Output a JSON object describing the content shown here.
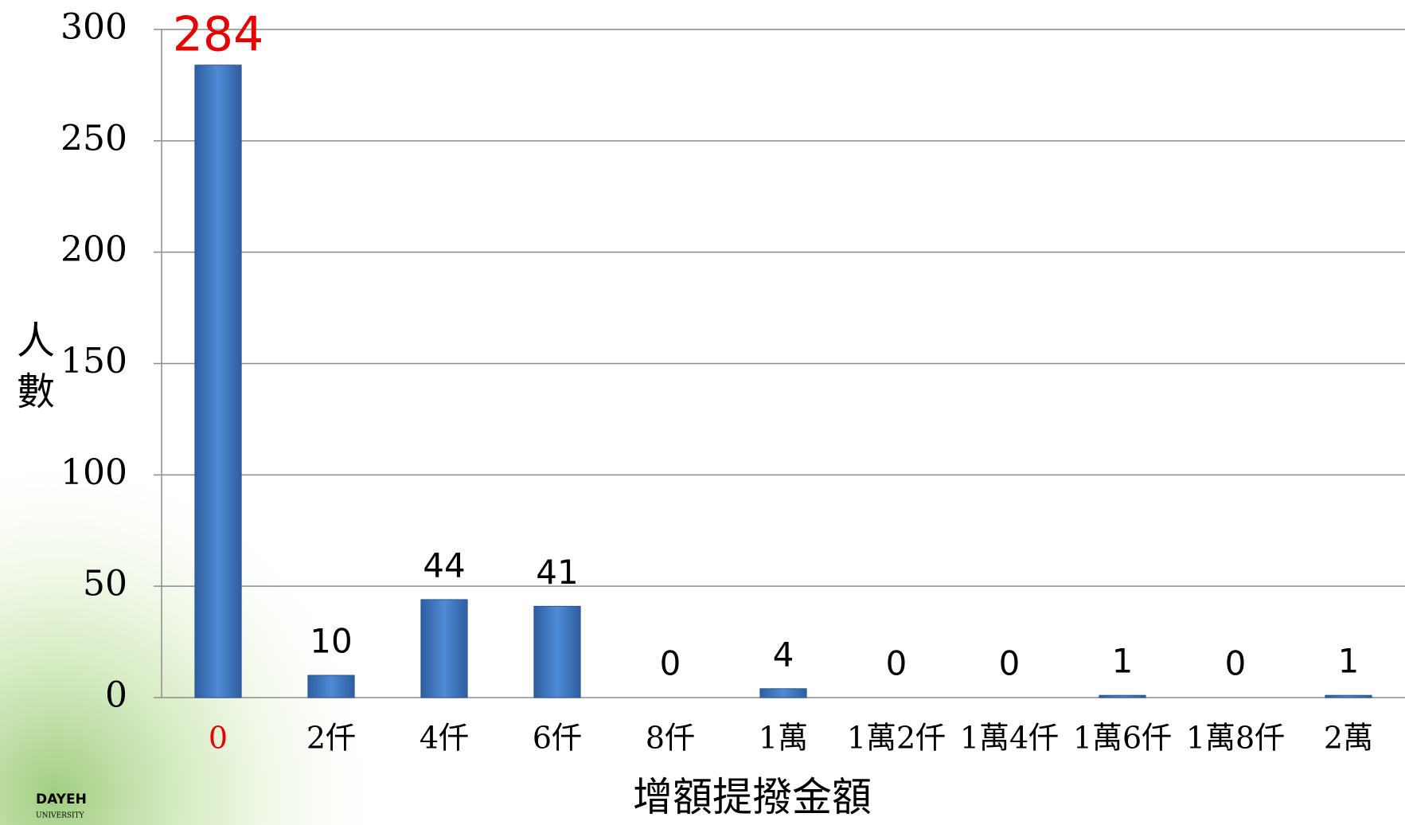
{
  "chart_data": {
    "type": "bar",
    "categories": [
      "0",
      "2仟",
      "4仟",
      "6仟",
      "8仟",
      "1萬",
      "1萬2仟",
      "1萬4仟",
      "1萬6仟",
      "1萬8仟",
      "2萬"
    ],
    "values": [
      284,
      10,
      44,
      41,
      0,
      4,
      0,
      0,
      1,
      0,
      1
    ],
    "color": "#3f74c2",
    "highlight_index": 0,
    "highlight_color": "#e60000",
    "ylim": [
      0,
      300
    ],
    "yticks": [
      0,
      50,
      100,
      150,
      200,
      250,
      300
    ],
    "grid": true,
    "y_label": "人數",
    "x_label": "增額提撥金額",
    "logo": "DAYEH",
    "logo_sub": "UNIVERSITY"
  }
}
